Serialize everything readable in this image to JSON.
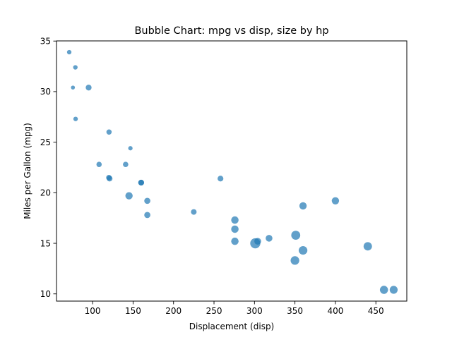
{
  "chart_data": {
    "type": "scatter",
    "title": "Bubble Chart: mpg vs disp, size by hp",
    "xlabel": "Displacement (disp)",
    "ylabel": "Miles per Gallon (mpg)",
    "xlim": [
      55.39,
      488.21
    ],
    "ylim": [
      9.285,
      35.015
    ],
    "xticks": [
      100,
      150,
      200,
      250,
      300,
      350,
      400,
      450
    ],
    "yticks": [
      10,
      15,
      20,
      25,
      30,
      35
    ],
    "grid": false,
    "legend": "none",
    "marker_color": "#1f77b4",
    "marker_alpha": 0.7,
    "size_variable": "hp",
    "series": [
      {
        "points": [
          {
            "disp": 160.0,
            "mpg": 21.0,
            "hp": 110
          },
          {
            "disp": 160.0,
            "mpg": 21.0,
            "hp": 110
          },
          {
            "disp": 108.0,
            "mpg": 22.8,
            "hp": 93
          },
          {
            "disp": 258.0,
            "mpg": 21.4,
            "hp": 110
          },
          {
            "disp": 360.0,
            "mpg": 18.7,
            "hp": 175
          },
          {
            "disp": 225.0,
            "mpg": 18.1,
            "hp": 105
          },
          {
            "disp": 360.0,
            "mpg": 14.3,
            "hp": 245
          },
          {
            "disp": 146.7,
            "mpg": 24.4,
            "hp": 62
          },
          {
            "disp": 140.8,
            "mpg": 22.8,
            "hp": 95
          },
          {
            "disp": 167.6,
            "mpg": 19.2,
            "hp": 123
          },
          {
            "disp": 167.6,
            "mpg": 17.8,
            "hp": 123
          },
          {
            "disp": 275.8,
            "mpg": 16.4,
            "hp": 180
          },
          {
            "disp": 275.8,
            "mpg": 17.3,
            "hp": 180
          },
          {
            "disp": 275.8,
            "mpg": 15.2,
            "hp": 180
          },
          {
            "disp": 472.0,
            "mpg": 10.4,
            "hp": 205
          },
          {
            "disp": 460.0,
            "mpg": 10.4,
            "hp": 215
          },
          {
            "disp": 440.0,
            "mpg": 14.7,
            "hp": 230
          },
          {
            "disp": 78.7,
            "mpg": 32.4,
            "hp": 66
          },
          {
            "disp": 75.7,
            "mpg": 30.4,
            "hp": 52
          },
          {
            "disp": 71.1,
            "mpg": 33.9,
            "hp": 65
          },
          {
            "disp": 120.1,
            "mpg": 21.5,
            "hp": 97
          },
          {
            "disp": 318.0,
            "mpg": 15.5,
            "hp": 150
          },
          {
            "disp": 304.0,
            "mpg": 15.2,
            "hp": 150
          },
          {
            "disp": 350.0,
            "mpg": 13.3,
            "hp": 245
          },
          {
            "disp": 400.0,
            "mpg": 19.2,
            "hp": 175
          },
          {
            "disp": 79.0,
            "mpg": 27.3,
            "hp": 66
          },
          {
            "disp": 120.3,
            "mpg": 26.0,
            "hp": 91
          },
          {
            "disp": 95.1,
            "mpg": 30.4,
            "hp": 113
          },
          {
            "disp": 351.0,
            "mpg": 15.8,
            "hp": 264
          },
          {
            "disp": 145.0,
            "mpg": 19.7,
            "hp": 175
          },
          {
            "disp": 301.0,
            "mpg": 15.0,
            "hp": 335
          },
          {
            "disp": 121.0,
            "mpg": 21.4,
            "hp": 109
          }
        ]
      }
    ]
  }
}
